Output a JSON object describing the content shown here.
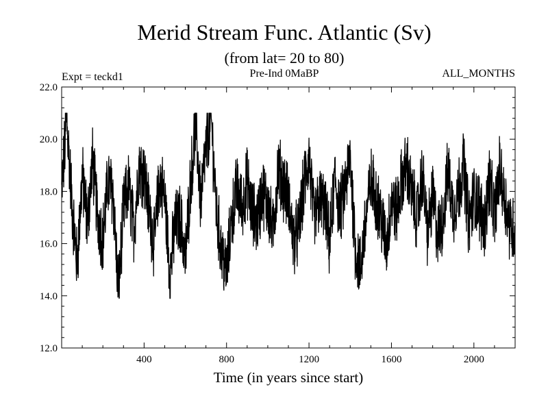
{
  "chart_data": {
    "type": "line",
    "title": "Merid Stream Func. Atlantic (Sv)",
    "subtitle": "(from lat= 20 to 80)",
    "experiment": "Expt = teckd1",
    "period": "Pre-Ind 0MaBP",
    "months": "ALL_MONTHS",
    "xlabel": "Time (in years since start)",
    "ylabel": "",
    "xlim": [
      0,
      2200
    ],
    "ylim": [
      12.0,
      22.0
    ],
    "x_ticks": [
      400,
      800,
      1200,
      1600,
      2000
    ],
    "x_tick_labels": [
      "400",
      "800",
      "1200",
      "1600",
      "2000"
    ],
    "y_ticks": [
      12.0,
      14.0,
      16.0,
      18.0,
      20.0,
      22.0
    ],
    "y_tick_labels": [
      "12.0",
      "14.0",
      "16.0",
      "18.0",
      "20.0",
      "22.0"
    ],
    "grid": false,
    "series": [
      {
        "name": "Merid Stream Func. Atlantic",
        "color": "#000000",
        "x_start": 0,
        "x_step": 25,
        "values": [
          18.0,
          20.8,
          17.5,
          15.2,
          18.6,
          16.8,
          19.2,
          17.0,
          16.2,
          18.4,
          17.9,
          14.1,
          17.3,
          18.2,
          16.5,
          19.0,
          18.7,
          17.2,
          16.0,
          18.5,
          17.8,
          14.9,
          16.7,
          17.0,
          15.4,
          18.3,
          20.6,
          17.6,
          19.6,
          20.9,
          17.3,
          15.7,
          14.9,
          17.0,
          18.1,
          17.4,
          18.4,
          17.1,
          16.9,
          18.0,
          17.5,
          16.4,
          18.9,
          18.3,
          17.7,
          16.1,
          16.5,
          18.2,
          19.3,
          16.8,
          17.7,
          17.4,
          16.0,
          18.5,
          17.2,
          18.1,
          19.3,
          15.8,
          15.0,
          16.9,
          18.4,
          17.8,
          17.0,
          15.9,
          17.6,
          17.2,
          18.4,
          19.0,
          17.8,
          17.0,
          18.7,
          16.4,
          17.8,
          16.3,
          17.0,
          18.8,
          17.2,
          18.0,
          19.1,
          16.8,
          17.8,
          17.5,
          16.6,
          18.5,
          17.0,
          18.8,
          17.7,
          16.7,
          16.5,
          18.2
        ]
      }
    ]
  }
}
